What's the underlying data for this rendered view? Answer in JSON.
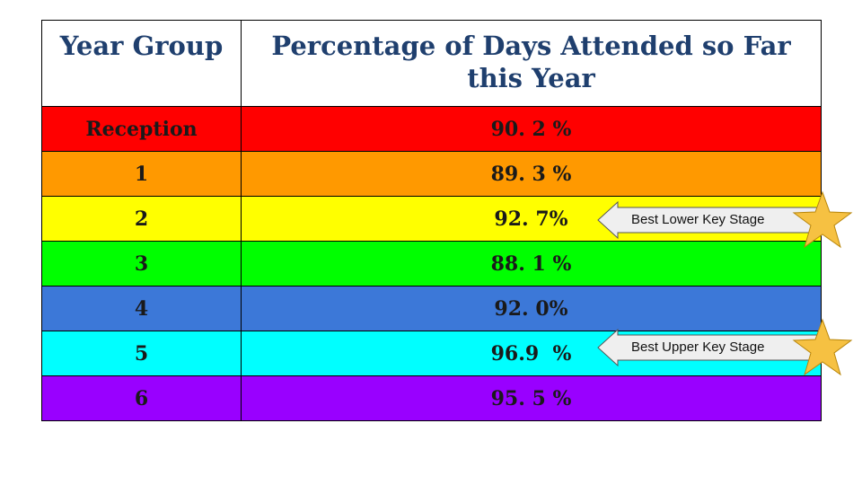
{
  "table": {
    "headers": [
      "Year Group",
      "Percentage of Days Attended so Far this Year"
    ],
    "rows": [
      {
        "group": "Reception",
        "value": "90. 2 %",
        "color": "#ff0000"
      },
      {
        "group": "1",
        "value": "89. 3 %",
        "color": "#ff9900"
      },
      {
        "group": "2",
        "value": "92. 7%",
        "color": "#ffff00"
      },
      {
        "group": "3",
        "value": "88. 1 %",
        "color": "#00ff00"
      },
      {
        "group": "4",
        "value": "92. 0%",
        "color": "#3c78d8"
      },
      {
        "group": "5",
        "value": "96.9  %",
        "color": "#00ffff"
      },
      {
        "group": "6",
        "value": "95. 5 %",
        "color": "#9900ff"
      }
    ]
  },
  "callouts": [
    {
      "label": "Best Lower Key Stage",
      "icon": "star-icon"
    },
    {
      "label": "Best Upper Key Stage",
      "icon": "star-icon"
    }
  ],
  "colors": {
    "header_text": "#1f3f6e",
    "star_fill": "#f6c142",
    "arrow_fill": "#efefef"
  }
}
